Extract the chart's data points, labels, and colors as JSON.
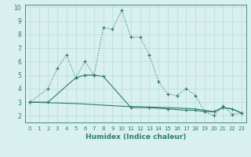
{
  "xlabel": "Humidex (Indice chaleur)",
  "xlim": [
    -0.5,
    23.5
  ],
  "ylim": [
    1.5,
    10.2
  ],
  "yticks": [
    2,
    3,
    4,
    5,
    6,
    7,
    8,
    9,
    10
  ],
  "xticks": [
    0,
    1,
    2,
    3,
    4,
    5,
    6,
    7,
    8,
    9,
    10,
    11,
    12,
    13,
    14,
    15,
    16,
    17,
    18,
    19,
    20,
    21,
    22,
    23
  ],
  "line1_x": [
    0,
    2,
    3,
    4,
    5,
    6,
    7,
    8,
    9,
    10,
    11,
    12,
    13,
    14,
    15,
    16,
    17,
    18,
    19,
    20,
    21,
    22,
    23
  ],
  "line1_y": [
    3.0,
    4.0,
    5.5,
    6.5,
    4.8,
    6.0,
    5.0,
    8.5,
    8.4,
    9.8,
    7.8,
    7.8,
    6.5,
    4.5,
    3.6,
    3.5,
    4.0,
    3.5,
    2.3,
    2.0,
    2.7,
    2.1,
    2.2
  ],
  "line2_x": [
    0,
    2,
    5,
    6,
    7,
    8,
    11,
    13,
    15,
    17,
    18,
    19,
    20,
    21,
    22,
    23
  ],
  "line2_y": [
    3.0,
    3.0,
    4.8,
    5.0,
    5.0,
    4.9,
    2.6,
    2.6,
    2.5,
    2.4,
    2.4,
    2.3,
    2.3,
    2.6,
    2.5,
    2.2
  ],
  "line3_x": [
    0,
    5,
    10,
    15,
    18,
    20,
    21,
    22,
    23
  ],
  "line3_y": [
    3.0,
    2.9,
    2.7,
    2.6,
    2.5,
    2.3,
    2.6,
    2.5,
    2.2
  ],
  "line_color": "#2e7d6e",
  "bg_color": "#d8f0ee",
  "grid_color": "#b8dbd8"
}
